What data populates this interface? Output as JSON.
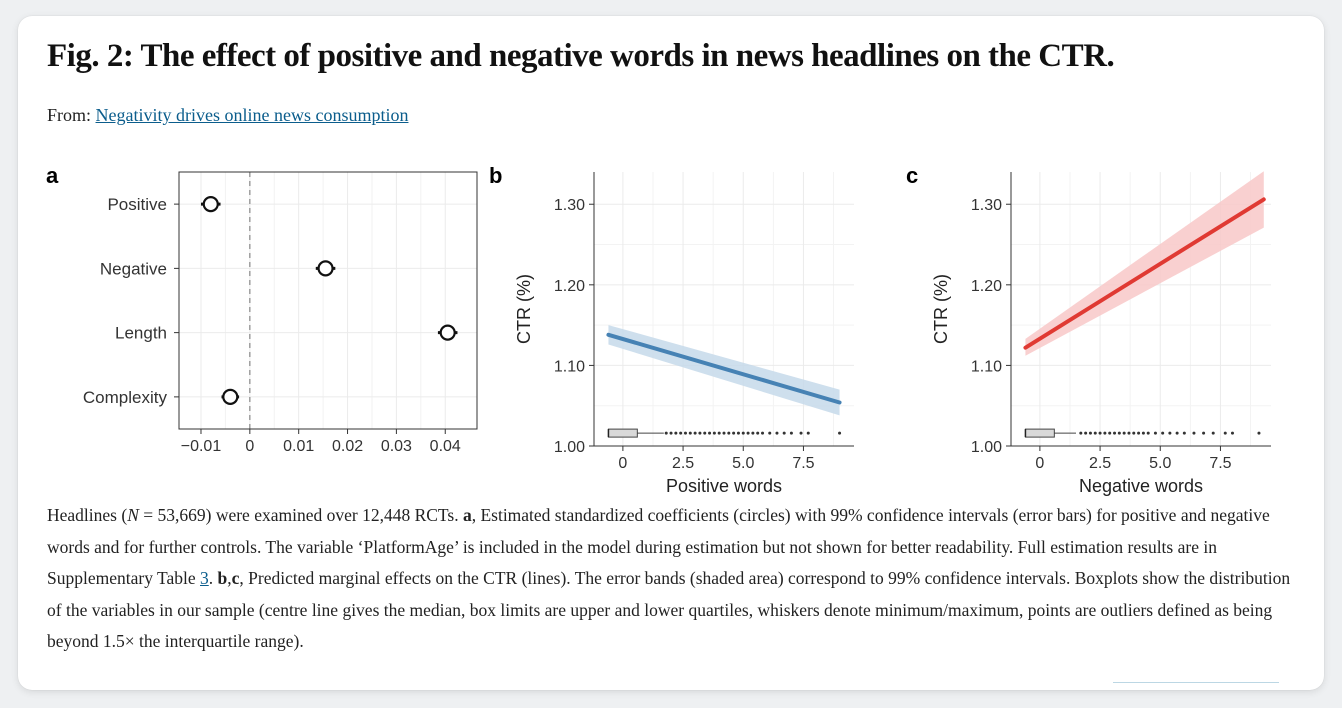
{
  "figure": {
    "title": "Fig. 2: The effect of positive and negative words in news headlines on the CTR.",
    "from_label": "From:",
    "from_link": "Negativity drives online news consumption"
  },
  "caption": {
    "p1": "Headlines (",
    "n_symbol": "N",
    "p2": " = 53,669) were examined over 12,448 RCTs. ",
    "a_label": "a",
    "p3": ", Estimated standardized coefficients (circles) with 99% confidence intervals (error bars) for positive and negative words and for further controls. The variable ‘PlatformAge’ is included in the model during estimation but not shown for better readability. Full estimation results are in Supplementary Table ",
    "table_ref": "3",
    "p4": ". ",
    "bc_label": "b",
    "comma": ",",
    "c_label": "c",
    "p5": ", Predicted marginal effects on the CTR (lines). The error bands (shaded area) correspond to 99% confidence intervals. Boxplots show the distribution of the variables in our sample (centre line gives the median, box limits are upper and lower quartiles, whiskers denote minimum/maximum, points are outliers defined as being beyond 1.5× the interquartile range)."
  },
  "colors": {
    "positive_line": "#4682b4",
    "positive_band": "#c6d9ea",
    "negative_line": "#e03a33",
    "negative_band": "#f8c8c8",
    "grid": "#ebebeb"
  },
  "chart_data": [
    {
      "panel": "a",
      "type": "scatter",
      "subtype": "coefficient-plot",
      "categories": [
        "Positive",
        "Negative",
        "Length",
        "Complexity"
      ],
      "estimates": [
        -0.008,
        0.0155,
        0.0405,
        -0.004
      ],
      "ci_low": [
        -0.01,
        0.0135,
        0.0385,
        -0.0058
      ],
      "ci_high": [
        -0.006,
        0.0175,
        0.0425,
        -0.0022
      ],
      "xlim": [
        -0.0145,
        0.0465
      ],
      "xticks": [
        -0.01,
        0,
        0.01,
        0.02,
        0.03,
        0.04
      ],
      "xtick_labels": [
        "−0.01",
        "0",
        "0.01",
        "0.02",
        "0.03",
        "0.04"
      ],
      "reference_line": 0,
      "xlabel": "",
      "ylabel": ""
    },
    {
      "panel": "b",
      "type": "line",
      "xlabel": "Positive words",
      "ylabel": "CTR (%)",
      "xlim": [
        -1.2,
        9.6
      ],
      "ylim": [
        1.0,
        1.34
      ],
      "xticks": [
        0,
        2.5,
        5.0,
        7.5
      ],
      "xtick_labels": [
        "0",
        "2.5",
        "5.0",
        "7.5"
      ],
      "yticks": [
        1.0,
        1.1,
        1.2,
        1.3
      ],
      "ytick_labels": [
        "1.00",
        "1.10",
        "1.20",
        "1.30"
      ],
      "line": {
        "x": [
          -0.6,
          9.0
        ],
        "y": [
          1.138,
          1.054
        ]
      },
      "band": {
        "x": [
          -0.6,
          9.0
        ],
        "lower": [
          1.126,
          1.038
        ],
        "upper": [
          1.15,
          1.07
        ]
      },
      "boxplot": {
        "min": -0.6,
        "q1": -0.6,
        "median": -0.6,
        "q3": 0.6,
        "max": 1.7,
        "outliers": [
          1.8,
          2.0,
          2.2,
          2.4,
          2.6,
          2.8,
          3.0,
          3.2,
          3.4,
          3.6,
          3.8,
          4.0,
          4.2,
          4.4,
          4.6,
          4.8,
          5.0,
          5.2,
          5.4,
          5.6,
          5.8,
          6.1,
          6.4,
          6.7,
          7.0,
          7.4,
          7.7,
          9.0
        ]
      }
    },
    {
      "panel": "c",
      "type": "line",
      "xlabel": "Negative words",
      "ylabel": "CTR (%)",
      "xlim": [
        -1.2,
        9.6
      ],
      "ylim": [
        1.0,
        1.34
      ],
      "xticks": [
        0,
        2.5,
        5.0,
        7.5
      ],
      "xtick_labels": [
        "0",
        "2.5",
        "5.0",
        "7.5"
      ],
      "yticks": [
        1.0,
        1.1,
        1.2,
        1.3
      ],
      "ytick_labels": [
        "1.00",
        "1.10",
        "1.20",
        "1.30"
      ],
      "line": {
        "x": [
          -0.6,
          9.3
        ],
        "y": [
          1.122,
          1.306
        ]
      },
      "band": {
        "x": [
          -0.6,
          9.3
        ],
        "lower": [
          1.112,
          1.271
        ],
        "upper": [
          1.133,
          1.341
        ]
      },
      "boxplot": {
        "min": -0.6,
        "q1": -0.6,
        "median": -0.6,
        "q3": 0.6,
        "max": 1.5,
        "outliers": [
          1.7,
          1.9,
          2.1,
          2.3,
          2.5,
          2.7,
          2.9,
          3.1,
          3.3,
          3.5,
          3.7,
          3.9,
          4.1,
          4.3,
          4.5,
          4.8,
          5.1,
          5.4,
          5.7,
          6.0,
          6.4,
          6.8,
          7.2,
          7.7,
          8.0,
          9.1
        ]
      }
    }
  ]
}
